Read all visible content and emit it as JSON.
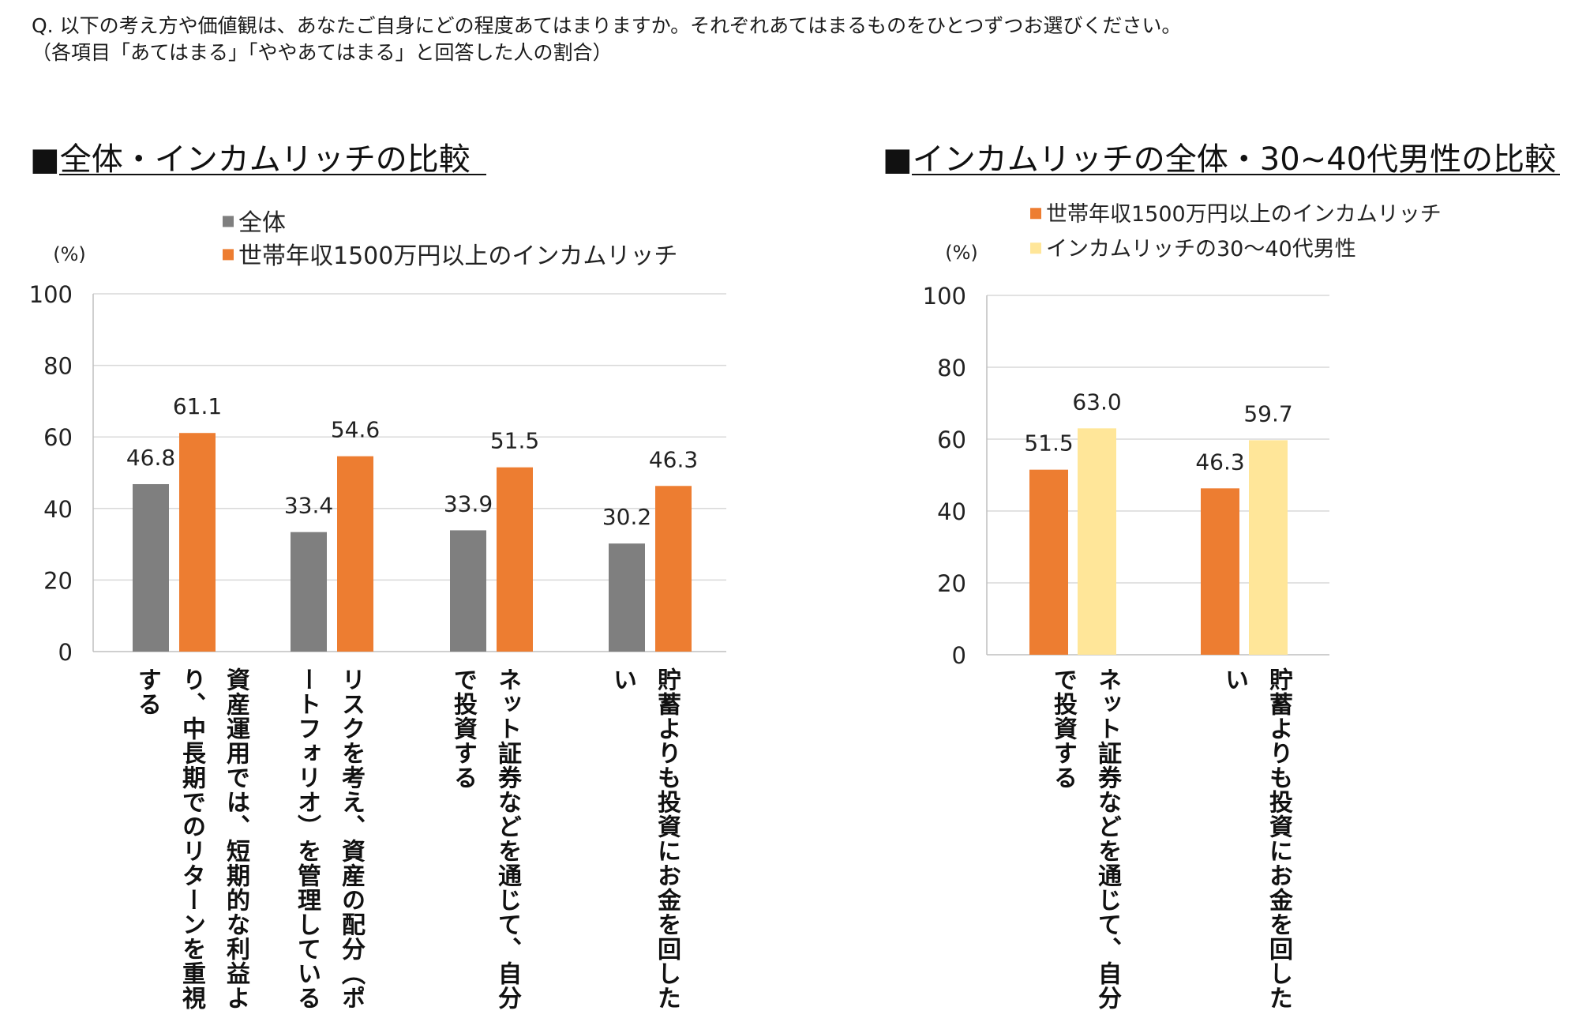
{
  "question": {
    "line1": "Q. 以下の考え方や価値観は、あなたご自身にどの程度あてはまりますか。それぞれあてはまるものをひとつずつお選びください。",
    "line2": "（各項目「あてはまる」「ややあてはまる」と回答した人の割合）"
  },
  "colors": {
    "gray": "#7f7f7f",
    "orange": "#ed7d31",
    "yellow": "#ffe699",
    "grid": "#d9d9d9",
    "axis": "#bfbfbf"
  },
  "chart_data": [
    {
      "type": "bar",
      "title": "■全体・インカムリッチの比較",
      "ylabel": "(%)",
      "ylim": [
        0,
        100
      ],
      "yticks": [
        "0",
        "20",
        "40",
        "60",
        "80",
        "100"
      ],
      "grid": true,
      "legend_position": "top",
      "categories": [
        "資産運用では、短期的な利益より、中長期でのリターンを重視する",
        "リスクを考え、資産の配分（ポートフォリオ）を管理している",
        "ネット証券などを通じて、自分で投資する",
        "貯蓄よりも投資にお金を回したい"
      ],
      "series": [
        {
          "name": "全体",
          "color": "#7f7f7f",
          "values": [
            46.8,
            33.4,
            33.9,
            30.2
          ],
          "labels": [
            "46.8",
            "33.4",
            "33.9",
            "30.2"
          ]
        },
        {
          "name": "世帯年収1500万円以上のインカムリッチ",
          "color": "#ed7d31",
          "values": [
            61.1,
            54.6,
            51.5,
            46.3
          ],
          "labels": [
            "61.1",
            "54.6",
            "51.5",
            "46.3"
          ]
        }
      ]
    },
    {
      "type": "bar",
      "title": "■インカムリッチの全体・30~40代男性の比較",
      "ylabel": "(%)",
      "ylim": [
        0,
        100
      ],
      "yticks": [
        "0",
        "20",
        "40",
        "60",
        "80",
        "100"
      ],
      "grid": true,
      "legend_position": "top",
      "categories": [
        "ネット証券などを通じて、自分で投資する",
        "貯蓄よりも投資にお金を回したい"
      ],
      "series": [
        {
          "name": "世帯年収1500万円以上のインカムリッチ",
          "color": "#ed7d31",
          "values": [
            51.5,
            46.3
          ],
          "labels": [
            "51.5",
            "46.3"
          ]
        },
        {
          "name": "インカムリッチの30～40代男性",
          "color": "#ffe699",
          "values": [
            63.0,
            59.7
          ],
          "labels": [
            "63.0",
            "59.7"
          ]
        }
      ]
    }
  ]
}
